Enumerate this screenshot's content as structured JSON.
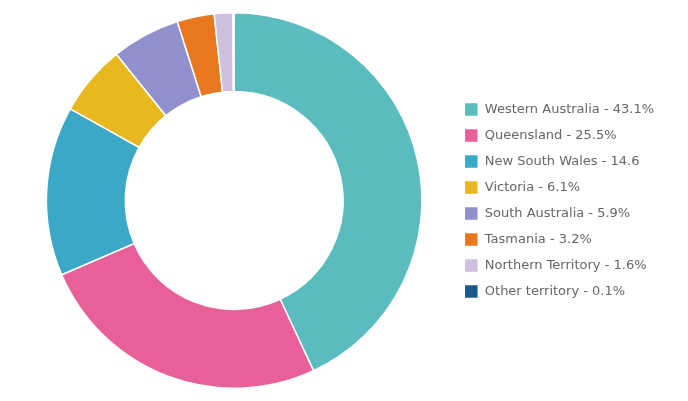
{
  "chart_data": {
    "type": "doughnut",
    "categories": [
      "Western Australia - 43.1%",
      "Queensland - 25.5%",
      "New South Wales - 14.6",
      "Victoria - 6.1%",
      "South Australia - 5.9%",
      "Tasmania - 3.2%",
      "Northern Territory - 1.6%",
      "Other territory - 0.1%"
    ],
    "values": [
      43.1,
      25.5,
      14.6,
      6.1,
      5.9,
      3.2,
      1.6,
      0.1
    ],
    "colors": [
      "#5bbcbf",
      "#e8609a",
      "#3ba8c8",
      "#e8b820",
      "#9090cc",
      "#e87820",
      "#d0c0e0",
      "#1a5a8a"
    ],
    "legend": "right"
  }
}
